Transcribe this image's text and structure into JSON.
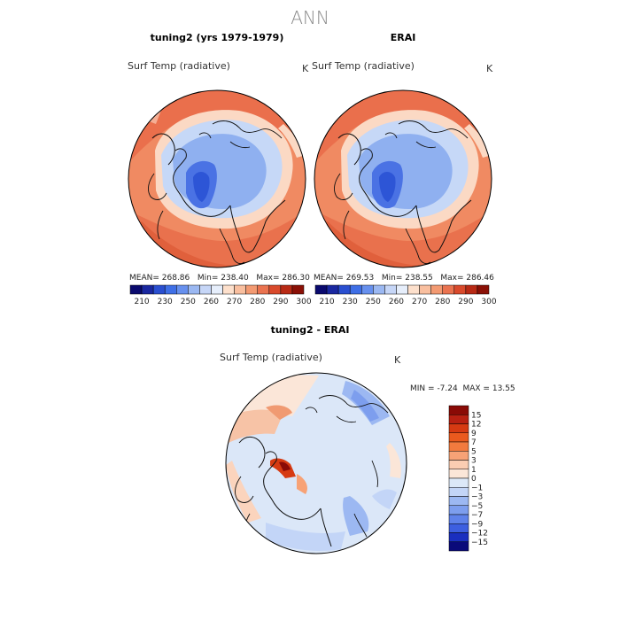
{
  "figure_title": "ANN",
  "panels": {
    "model": {
      "title": "tuning2 (yrs 1979-1979)",
      "variable": "Surf Temp (radiative)",
      "units": "K",
      "stats": {
        "mean_label": "MEAN=",
        "mean": "268.86",
        "min_label": "Min=",
        "min": "238.40",
        "max_label": "Max=",
        "max": "286.30"
      }
    },
    "obs": {
      "title": "ERAI",
      "variable": "Surf Temp (radiative)",
      "units": "K",
      "stats": {
        "mean_label": "MEAN=",
        "mean": "269.53",
        "min_label": "Min=",
        "min": "238.55",
        "max_label": "Max=",
        "max": "286.46"
      }
    },
    "diff": {
      "title": "tuning2 - ERAI",
      "variable": "Surf Temp (radiative)",
      "units": "K",
      "stats": {
        "min_label": "MIN =",
        "min": "-7.24",
        "max_label": "MAX =",
        "max": "13.55"
      }
    }
  },
  "chart_data": [
    {
      "type": "heatmap",
      "projection": "north polar stereographic",
      "title": "tuning2 (yrs 1979-1979)",
      "variable": "Surf Temp (radiative)",
      "units": "K",
      "mean": 268.86,
      "min": 238.4,
      "max": 286.3,
      "colorbar": {
        "levels": [
          210,
          230,
          250,
          260,
          270,
          280,
          290,
          300
        ],
        "colors": [
          "#0a0a6e",
          "#1a28a0",
          "#2a4fd0",
          "#3f6fe6",
          "#6790ee",
          "#9bb8f2",
          "#c6d6f7",
          "#e6eefb",
          "#fde0cc",
          "#f9bf9f",
          "#f39a72",
          "#ea7350",
          "#d94a2c",
          "#b82a15",
          "#8a1006"
        ]
      }
    },
    {
      "type": "heatmap",
      "projection": "north polar stereographic",
      "title": "ERAI",
      "variable": "Surf Temp (radiative)",
      "units": "K",
      "mean": 269.53,
      "min": 238.55,
      "max": 286.46,
      "colorbar": {
        "levels": [
          210,
          230,
          250,
          260,
          270,
          280,
          290,
          300
        ],
        "colors": [
          "#0a0a6e",
          "#1a28a0",
          "#2a4fd0",
          "#3f6fe6",
          "#6790ee",
          "#9bb8f2",
          "#c6d6f7",
          "#e6eefb",
          "#fde0cc",
          "#f9bf9f",
          "#f39a72",
          "#ea7350",
          "#d94a2c",
          "#b82a15",
          "#8a1006"
        ]
      }
    },
    {
      "type": "heatmap",
      "projection": "north polar stereographic",
      "title": "tuning2 - ERAI",
      "variable": "Surf Temp (radiative)",
      "units": "K",
      "min": -7.24,
      "max": 13.55,
      "colorbar": {
        "levels": [
          15,
          12,
          9,
          7,
          5,
          3,
          1,
          0,
          -1,
          -3,
          -5,
          -7,
          -9,
          -12,
          -15
        ],
        "labels": [
          "15",
          "12",
          "9",
          "7",
          "5",
          "3",
          "1",
          "0",
          "−1",
          "−3",
          "−5",
          "−7",
          "−9",
          "−12",
          "−15"
        ],
        "colors": [
          "#8a0a06",
          "#b82012",
          "#d63a12",
          "#ea5a1e",
          "#f27a3e",
          "#f7a276",
          "#fbcdb2",
          "#fbe6d8",
          "#dce8f8",
          "#c3d5f7",
          "#9cb8f2",
          "#7d9eee",
          "#5f82ea",
          "#3d5fe0",
          "#1a2fbf",
          "#0a0a7a"
        ]
      }
    }
  ]
}
